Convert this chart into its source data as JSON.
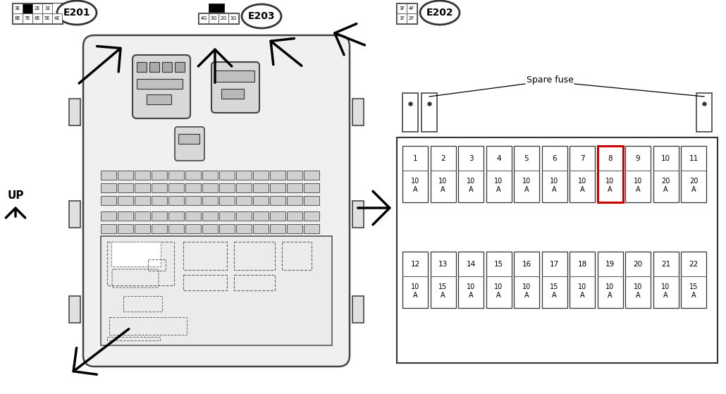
{
  "bg": "#ffffff",
  "row1": [
    {
      "n": "1",
      "a": "10",
      "hi": false
    },
    {
      "n": "2",
      "a": "10",
      "hi": false
    },
    {
      "n": "3",
      "a": "10",
      "hi": false
    },
    {
      "n": "4",
      "a": "10",
      "hi": false
    },
    {
      "n": "5",
      "a": "10",
      "hi": false
    },
    {
      "n": "6",
      "a": "10",
      "hi": false
    },
    {
      "n": "7",
      "a": "10",
      "hi": false
    },
    {
      "n": "8",
      "a": "10",
      "hi": true
    },
    {
      "n": "9",
      "a": "10",
      "hi": false
    },
    {
      "n": "10",
      "a": "20",
      "hi": false
    },
    {
      "n": "11",
      "a": "20",
      "hi": false
    }
  ],
  "row2": [
    {
      "n": "12",
      "a": "10",
      "hi": false
    },
    {
      "n": "13",
      "a": "15",
      "hi": false
    },
    {
      "n": "14",
      "a": "10",
      "hi": false
    },
    {
      "n": "15",
      "a": "10",
      "hi": false
    },
    {
      "n": "16",
      "a": "10",
      "hi": false
    },
    {
      "n": "17",
      "a": "15",
      "hi": false
    },
    {
      "n": "18",
      "a": "10",
      "hi": false
    },
    {
      "n": "19",
      "a": "10",
      "hi": false
    },
    {
      "n": "20",
      "a": "10",
      "hi": false
    },
    {
      "n": "21",
      "a": "10",
      "hi": false
    },
    {
      "n": "22",
      "a": "15",
      "hi": false
    }
  ],
  "e201_top": [
    "3E",
    "",
    "2E",
    "1E"
  ],
  "e201_bot": [
    "8E",
    "7E",
    "6E",
    "5E",
    "4E"
  ],
  "e203_top_black": true,
  "e203_pins": [
    "4G",
    "3G",
    "2G",
    "1G"
  ],
  "e202_top": [
    "3F",
    "4F"
  ],
  "e202_bot": [
    "1F",
    "2F"
  ],
  "spare_label": "Spare fuse",
  "up_label": "UP",
  "highlight_color": "#cc0000"
}
